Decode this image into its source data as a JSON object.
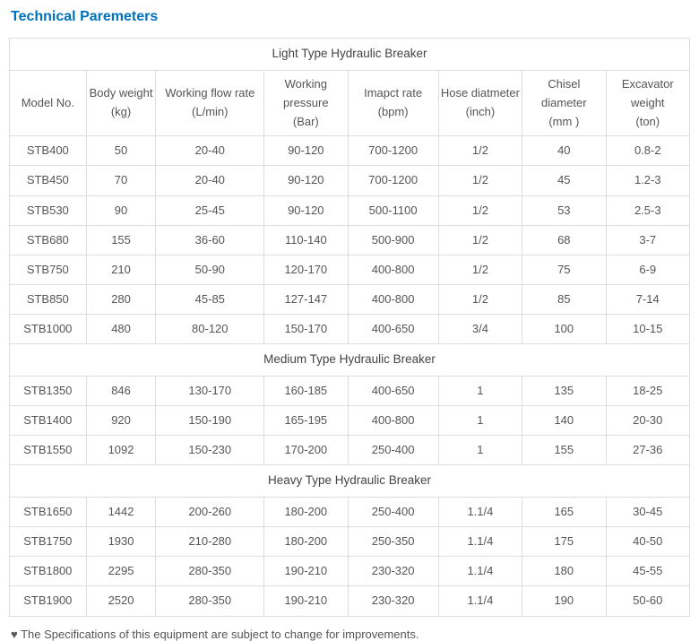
{
  "title": "Technical Paremeters",
  "sections": {
    "light": "Light Type Hydraulic Breaker",
    "medium": "Medium Type Hydraulic Breaker",
    "heavy": "Heavy Type Hydraulic Breaker"
  },
  "columns": [
    {
      "line1": "Model No.",
      "line2": ""
    },
    {
      "line1": "Body weight",
      "line2": "(kg)"
    },
    {
      "line1": "Working flow rate (L/min)",
      "line2": ""
    },
    {
      "line1": "Working pressure",
      "line2": "(Bar)"
    },
    {
      "line1": "Imapct rate",
      "line2": "(bpm)"
    },
    {
      "line1": "Hose diatmeter",
      "line2": "(inch)"
    },
    {
      "line1": "Chisel diameter",
      "line2": "(mm )"
    },
    {
      "line1": "Excavator weight",
      "line2": "(ton)"
    }
  ],
  "light_rows": [
    [
      "STB400",
      "50",
      "20-40",
      "90-120",
      "700-1200",
      "1/2",
      "40",
      "0.8-2"
    ],
    [
      "STB450",
      "70",
      "20-40",
      "90-120",
      "700-1200",
      "1/2",
      "45",
      "1.2-3"
    ],
    [
      "STB530",
      "90",
      "25-45",
      "90-120",
      "500-1100",
      "1/2",
      "53",
      "2.5-3"
    ],
    [
      "STB680",
      "155",
      "36-60",
      "110-140",
      "500-900",
      "1/2",
      "68",
      "3-7"
    ],
    [
      "STB750",
      "210",
      "50-90",
      "120-170",
      "400-800",
      "1/2",
      "75",
      "6-9"
    ],
    [
      "STB850",
      "280",
      "45-85",
      "127-147",
      "400-800",
      "1/2",
      "85",
      "7-14"
    ],
    [
      "STB1000",
      "480",
      "80-120",
      "150-170",
      "400-650",
      "3/4",
      "100",
      "10-15"
    ]
  ],
  "medium_rows": [
    [
      "STB1350",
      "846",
      "130-170",
      "160-185",
      "400-650",
      "1",
      "135",
      "18-25"
    ],
    [
      "STB1400",
      "920",
      "150-190",
      "165-195",
      "400-800",
      "1",
      "140",
      "20-30"
    ],
    [
      "STB1550",
      "1092",
      "150-230",
      "170-200",
      "250-400",
      "1",
      "155",
      "27-36"
    ]
  ],
  "heavy_rows": [
    [
      "STB1650",
      "1442",
      "200-260",
      "180-200",
      "250-400",
      "1.1/4",
      "165",
      "30-45"
    ],
    [
      "STB1750",
      "1930",
      "210-280",
      "180-200",
      "250-350",
      "1.1/4",
      "175",
      "40-50"
    ],
    [
      "STB1800",
      "2295",
      "280-350",
      "190-210",
      "230-320",
      "1.1/4",
      "180",
      "45-55"
    ],
    [
      "STB1900",
      "2520",
      "280-350",
      "190-210",
      "230-320",
      "1.1/4",
      "190",
      "50-60"
    ]
  ],
  "footnote": "♥ The Specifications of this equipment are subject to change for improvements.",
  "styling": {
    "title_color": "#0071bc",
    "border_color": "#dddddd",
    "text_color": "#555555",
    "background": "#ffffff",
    "font_family": "Arial",
    "title_fontsize": 16,
    "cell_fontsize": 13,
    "col_widths_pct": [
      11,
      10,
      15.5,
      12,
      13,
      12,
      12,
      12
    ]
  }
}
